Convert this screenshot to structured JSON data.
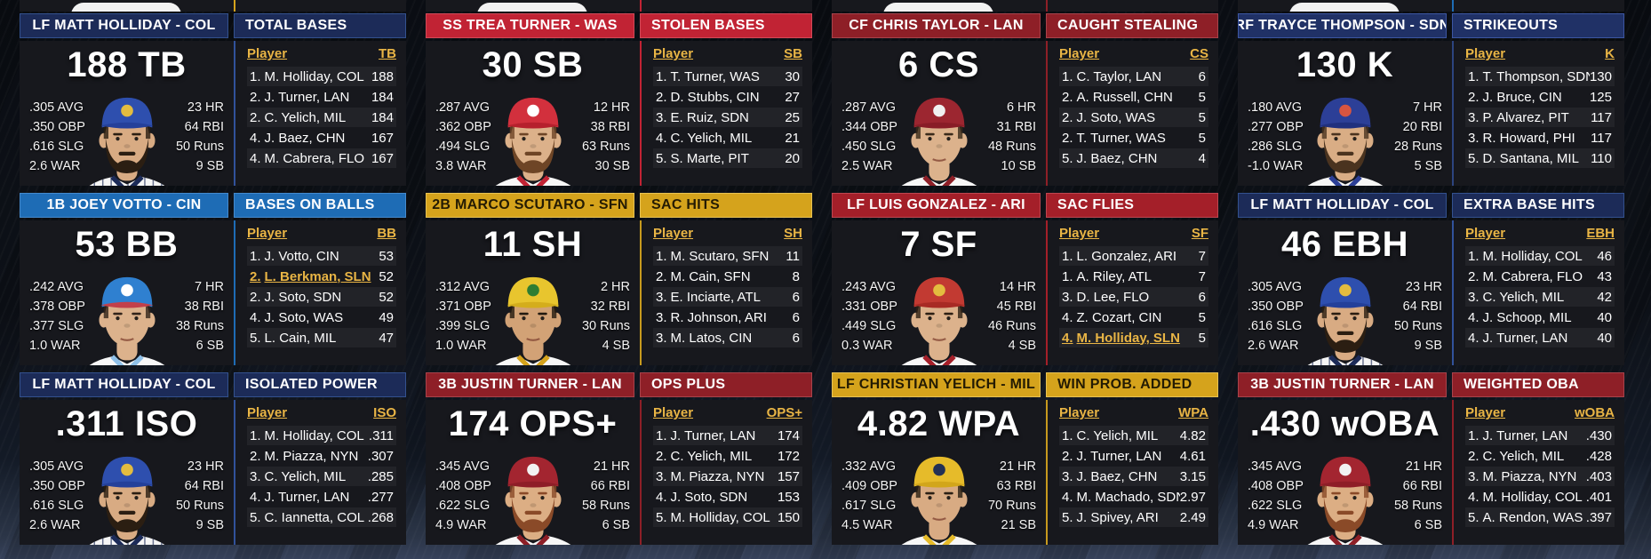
{
  "peek_row": {
    "accents": [
      "#d5a31c",
      "#c12334",
      "#8e1f27",
      "#1e6cb5"
    ]
  },
  "cards": [
    {
      "player": "LF MATT HOLLIDAY - COL",
      "category": "TOTAL BASES",
      "value": "188 TB",
      "stats_left": [
        ".305 AVG",
        ".350 OBP",
        ".616 SLG",
        "2.6 WAR"
      ],
      "stats_right": [
        "23 HR",
        "64 RBI",
        "50 Runs",
        "9 SB"
      ],
      "stat_abbr": "TB",
      "player_col_label": "Player",
      "leaders": [
        {
          "rank": "1.",
          "name": "M. Holliday, COL",
          "value": "188",
          "highlight": false
        },
        {
          "rank": "2.",
          "name": "J. Turner, LAN",
          "value": "184",
          "highlight": false
        },
        {
          "rank": "2.",
          "name": "C. Yelich, MIL",
          "value": "184",
          "highlight": false
        },
        {
          "rank": "4.",
          "name": "J. Baez, CHN",
          "value": "167",
          "highlight": false
        },
        {
          "rank": "4.",
          "name": "M. Cabrera, FLO",
          "value": "167",
          "highlight": false
        }
      ],
      "colors": {
        "header_bg": "#1c2b58",
        "header_text": "#ffffff",
        "header_border": "#33518e",
        "accent": "#31529b"
      },
      "portrait": {
        "cap": "#2e4fae",
        "bill": "#24409a",
        "logo": "#e3bc3f",
        "jersey": "#f5f5f5",
        "trim": "#1c2b58",
        "pinstripes": true,
        "beard": true,
        "skin": "#d8ab83",
        "hair": "#2b1e12"
      }
    },
    {
      "player": "SS TREA TURNER - WAS",
      "category": "STOLEN BASES",
      "value": "30 SB",
      "stats_left": [
        ".287 AVG",
        ".362 OBP",
        ".494 SLG",
        "3.8 WAR"
      ],
      "stats_right": [
        "12 HR",
        "38 RBI",
        "63 Runs",
        "30 SB"
      ],
      "stat_abbr": "SB",
      "player_col_label": "Player",
      "leaders": [
        {
          "rank": "1.",
          "name": "T. Turner, WAS",
          "value": "30",
          "highlight": false
        },
        {
          "rank": "2.",
          "name": "D. Stubbs, CIN",
          "value": "27",
          "highlight": false
        },
        {
          "rank": "3.",
          "name": "E. Ruiz, SDN",
          "value": "25",
          "highlight": false
        },
        {
          "rank": "4.",
          "name": "C. Yelich, MIL",
          "value": "21",
          "highlight": false
        },
        {
          "rank": "5.",
          "name": "S. Marte, PIT",
          "value": "20",
          "highlight": false
        }
      ],
      "colors": {
        "header_bg": "#c12334",
        "header_text": "#ffffff",
        "header_border": "#d24a58",
        "accent": "#c12334"
      },
      "portrait": {
        "cap": "#d2303d",
        "bill": "#b6202d",
        "logo": "#ffffff",
        "jersey": "#f7f7f7",
        "trim": "#c12334",
        "pinstripes": false,
        "beard": true,
        "skin": "#dcb18a",
        "hair": "#6e4526"
      }
    },
    {
      "player": "CF CHRIS TAYLOR - LAN",
      "category": "CAUGHT STEALING",
      "value": "6 CS",
      "stats_left": [
        ".287 AVG",
        ".344 OBP",
        ".450 SLG",
        "2.5 WAR"
      ],
      "stats_right": [
        "6 HR",
        "31 RBI",
        "48 Runs",
        "10 SB"
      ],
      "stat_abbr": "CS",
      "player_col_label": "Player",
      "leaders": [
        {
          "rank": "1.",
          "name": "C. Taylor, LAN",
          "value": "6",
          "highlight": false
        },
        {
          "rank": "2.",
          "name": "A. Russell, CHN",
          "value": "5",
          "highlight": false
        },
        {
          "rank": "2.",
          "name": "J. Soto, WAS",
          "value": "5",
          "highlight": false
        },
        {
          "rank": "2.",
          "name": "T. Turner, WAS",
          "value": "5",
          "highlight": false
        },
        {
          "rank": "5.",
          "name": "J. Baez, CHN",
          "value": "4",
          "highlight": false
        }
      ],
      "colors": {
        "header_bg": "#8e1f27",
        "header_text": "#ffffff",
        "header_border": "#a8434b",
        "accent": "#8e1f27"
      },
      "portrait": {
        "cap": "#9c2630",
        "bill": "#891d27",
        "logo": "#f0f0f0",
        "jersey": "#f7f7f7",
        "trim": "#8e1f27",
        "pinstripes": false,
        "beard": false,
        "skin": "#dcb28c",
        "hair": "#3a2a1a"
      }
    },
    {
      "player": "RF TRAYCE THOMPSON - SDN",
      "category": "STRIKEOUTS",
      "value": "130 K",
      "stats_left": [
        ".180 AVG",
        ".277 OBP",
        ".286 SLG",
        "-1.0 WAR"
      ],
      "stats_right": [
        "7 HR",
        "20 RBI",
        "28 Runs",
        "5 SB"
      ],
      "stat_abbr": "K",
      "player_col_label": "Player",
      "leaders": [
        {
          "rank": "1.",
          "name": "T. Thompson, SDN",
          "value": "130",
          "highlight": false
        },
        {
          "rank": "2.",
          "name": "J. Bruce, CIN",
          "value": "125",
          "highlight": false
        },
        {
          "rank": "3.",
          "name": "P. Alvarez, PIT",
          "value": "117",
          "highlight": false
        },
        {
          "rank": "3.",
          "name": "R. Howard, PHI",
          "value": "117",
          "highlight": false
        },
        {
          "rank": "5.",
          "name": "D. Santana, MIL",
          "value": "110",
          "highlight": false
        }
      ],
      "colors": {
        "header_bg": "#203166",
        "header_text": "#ffffff",
        "header_border": "#3c56a2",
        "accent": "#2c447f"
      },
      "portrait": {
        "cap": "#2c3f97",
        "bill": "#20307e",
        "logo": "#d85540",
        "jersey": "#f6f6f6",
        "trim": "#2c3f97",
        "pinstripes": false,
        "beard": true,
        "skin": "#d9ad85",
        "hair": "#4a331f"
      }
    },
    {
      "player": "1B JOEY VOTTO - CIN",
      "category": "BASES ON BALLS",
      "value": "53 BB",
      "stats_left": [
        ".242 AVG",
        ".378 OBP",
        ".377 SLG",
        "1.0 WAR"
      ],
      "stats_right": [
        "7 HR",
        "38 RBI",
        "38 Runs",
        "6 SB"
      ],
      "stat_abbr": "BB",
      "player_col_label": "Player",
      "leaders": [
        {
          "rank": "1.",
          "name": "J. Votto, CIN",
          "value": "53",
          "highlight": false
        },
        {
          "rank": "2.",
          "name": "L. Berkman, SLN",
          "value": "52",
          "highlight": true
        },
        {
          "rank": "2.",
          "name": "J. Soto, SDN",
          "value": "52",
          "highlight": false
        },
        {
          "rank": "4.",
          "name": "J. Soto, WAS",
          "value": "49",
          "highlight": false
        },
        {
          "rank": "5.",
          "name": "L. Cain, MIL",
          "value": "47",
          "highlight": false
        }
      ],
      "colors": {
        "header_bg": "#1e6cb5",
        "header_text": "#ffffff",
        "header_border": "#4489cc",
        "accent": "#1e6cb5"
      },
      "portrait": {
        "cap": "#2f80d0",
        "bill": "#c2404a",
        "logo": "#ffffff",
        "jersey": "#f7f7f7",
        "trim": "#8fc0e8",
        "pinstripes": false,
        "beard": false,
        "skin": "#dcb28c",
        "hair": "#32241a"
      }
    },
    {
      "player": "2B MARCO SCUTARO - SFN",
      "category": "SAC HITS",
      "value": "11 SH",
      "stats_left": [
        ".312 AVG",
        ".371 OBP",
        ".399 SLG",
        "1.0 WAR"
      ],
      "stats_right": [
        "2 HR",
        "32 RBI",
        "30 Runs",
        "4 SB"
      ],
      "stat_abbr": "SH",
      "player_col_label": "Player",
      "leaders": [
        {
          "rank": "1.",
          "name": "M. Scutaro, SFN",
          "value": "11",
          "highlight": false
        },
        {
          "rank": "2.",
          "name": "M. Cain, SFN",
          "value": "8",
          "highlight": false
        },
        {
          "rank": "3.",
          "name": "E. Inciarte, ATL",
          "value": "6",
          "highlight": false
        },
        {
          "rank": "3.",
          "name": "R. Johnson, ARI",
          "value": "6",
          "highlight": false
        },
        {
          "rank": "3.",
          "name": "M. Latos, CIN",
          "value": "6",
          "highlight": false
        }
      ],
      "colors": {
        "header_bg": "#d5a31c",
        "header_text": "#241b03",
        "header_border": "#e7c253",
        "accent": "#c79a1e"
      },
      "portrait": {
        "cap": "#e8c52e",
        "bill": "#d4ad1c",
        "logo": "#2e7d32",
        "jersey": "#f7f7f7",
        "trim": "#d5a31c",
        "pinstripes": false,
        "beard": false,
        "skin": "#d2a276",
        "hair": "#231a10"
      }
    },
    {
      "player": "LF LUIS GONZALEZ - ARI",
      "category": "SAC FLIES",
      "value": "7 SF",
      "stats_left": [
        ".243 AVG",
        ".331 OBP",
        ".449 SLG",
        "0.3 WAR"
      ],
      "stats_right": [
        "14 HR",
        "45 RBI",
        "46 Runs",
        "4 SB"
      ],
      "stat_abbr": "SF",
      "player_col_label": "Player",
      "leaders": [
        {
          "rank": "1.",
          "name": "L. Gonzalez, ARI",
          "value": "7",
          "highlight": false
        },
        {
          "rank": "1.",
          "name": "A. Riley, ATL",
          "value": "7",
          "highlight": false
        },
        {
          "rank": "3.",
          "name": "D. Lee, FLO",
          "value": "6",
          "highlight": false
        },
        {
          "rank": "4.",
          "name": "Z. Cozart, CIN",
          "value": "5",
          "highlight": false
        },
        {
          "rank": "4.",
          "name": "M. Holliday, SLN",
          "value": "5",
          "highlight": true
        }
      ],
      "colors": {
        "header_bg": "#a41f29",
        "header_text": "#ffffff",
        "header_border": "#bc4650",
        "accent": "#a41f29"
      },
      "portrait": {
        "cap": "#c23a32",
        "bill": "#a82a24",
        "logo": "#e3bc3f",
        "jersey": "#f7f7f7",
        "trim": "#a41f29",
        "pinstripes": false,
        "beard": false,
        "skin": "#dcb28c",
        "hair": "#2e2014"
      }
    },
    {
      "player": "LF MATT HOLLIDAY - COL",
      "category": "EXTRA BASE HITS",
      "value": "46 EBH",
      "stats_left": [
        ".305 AVG",
        ".350 OBP",
        ".616 SLG",
        "2.6 WAR"
      ],
      "stats_right": [
        "23 HR",
        "64 RBI",
        "50 Runs",
        "9 SB"
      ],
      "stat_abbr": "EBH",
      "player_col_label": "Player",
      "leaders": [
        {
          "rank": "1.",
          "name": "M. Holliday, COL",
          "value": "46",
          "highlight": false
        },
        {
          "rank": "2.",
          "name": "M. Cabrera, FLO",
          "value": "43",
          "highlight": false
        },
        {
          "rank": "3.",
          "name": "C. Yelich, MIL",
          "value": "42",
          "highlight": false
        },
        {
          "rank": "4.",
          "name": "J. Schoop, MIL",
          "value": "40",
          "highlight": false
        },
        {
          "rank": "4.",
          "name": "J. Turner, LAN",
          "value": "40",
          "highlight": false
        }
      ],
      "colors": {
        "header_bg": "#1c2b58",
        "header_text": "#ffffff",
        "header_border": "#33518e",
        "accent": "#31529b"
      },
      "portrait": {
        "cap": "#2e4fae",
        "bill": "#24409a",
        "logo": "#e3bc3f",
        "jersey": "#f5f5f5",
        "trim": "#1c2b58",
        "pinstripes": true,
        "beard": true,
        "skin": "#d8ab83",
        "hair": "#2b1e12"
      }
    },
    {
      "player": "LF MATT HOLLIDAY - COL",
      "category": "ISOLATED POWER",
      "value": ".311 ISO",
      "stats_left": [
        ".305 AVG",
        ".350 OBP",
        ".616 SLG",
        "2.6 WAR"
      ],
      "stats_right": [
        "23 HR",
        "64 RBI",
        "50 Runs",
        "9 SB"
      ],
      "stat_abbr": "ISO",
      "player_col_label": "Player",
      "leaders": [
        {
          "rank": "1.",
          "name": "M. Holliday, COL",
          "value": ".311",
          "highlight": false
        },
        {
          "rank": "2.",
          "name": "M. Piazza, NYN",
          "value": ".307",
          "highlight": false
        },
        {
          "rank": "3.",
          "name": "C. Yelich, MIL",
          "value": ".285",
          "highlight": false
        },
        {
          "rank": "4.",
          "name": "J. Turner, LAN",
          "value": ".277",
          "highlight": false
        },
        {
          "rank": "5.",
          "name": "C. Iannetta, COL",
          "value": ".268",
          "highlight": false
        }
      ],
      "colors": {
        "header_bg": "#1c2b58",
        "header_text": "#ffffff",
        "header_border": "#33518e",
        "accent": "#31529b"
      },
      "portrait": {
        "cap": "#2e4fae",
        "bill": "#24409a",
        "logo": "#e3bc3f",
        "jersey": "#f5f5f5",
        "trim": "#1c2b58",
        "pinstripes": true,
        "beard": true,
        "skin": "#d8ab83",
        "hair": "#2b1e12"
      }
    },
    {
      "player": "3B JUSTIN TURNER - LAN",
      "category": "OPS PLUS",
      "value": "174 OPS+",
      "stats_left": [
        ".345 AVG",
        ".408 OBP",
        ".622 SLG",
        "4.9 WAR"
      ],
      "stats_right": [
        "21 HR",
        "66 RBI",
        "58 Runs",
        "6 SB"
      ],
      "stat_abbr": "OPS+",
      "player_col_label": "Player",
      "leaders": [
        {
          "rank": "1.",
          "name": "J. Turner, LAN",
          "value": "174",
          "highlight": false
        },
        {
          "rank": "2.",
          "name": "C. Yelich, MIL",
          "value": "172",
          "highlight": false
        },
        {
          "rank": "3.",
          "name": "M. Piazza, NYN",
          "value": "157",
          "highlight": false
        },
        {
          "rank": "4.",
          "name": "J. Soto, SDN",
          "value": "153",
          "highlight": false
        },
        {
          "rank": "5.",
          "name": "M. Holliday, COL",
          "value": "150",
          "highlight": false
        }
      ],
      "colors": {
        "header_bg": "#8e1f27",
        "header_text": "#ffffff",
        "header_border": "#a8434b",
        "accent": "#8e1f27"
      },
      "portrait": {
        "cap": "#a32530",
        "bill": "#8e1d27",
        "logo": "#f2f2f2",
        "jersey": "#f7f7f7",
        "trim": "#8e1f27",
        "pinstripes": false,
        "beard": true,
        "skin": "#dcae84",
        "hair": "#8a4a28"
      }
    },
    {
      "player": "LF CHRISTIAN YELICH - MIL",
      "category": "WIN PROB. ADDED",
      "value": "4.82 WPA",
      "stats_left": [
        ".332 AVG",
        ".409 OBP",
        ".617 SLG",
        "4.5 WAR"
      ],
      "stats_right": [
        "21 HR",
        "63 RBI",
        "70 Runs",
        "21 SB"
      ],
      "stat_abbr": "WPA",
      "player_col_label": "Player",
      "leaders": [
        {
          "rank": "1.",
          "name": "C. Yelich, MIL",
          "value": "4.82",
          "highlight": false
        },
        {
          "rank": "2.",
          "name": "J. Turner, LAN",
          "value": "4.61",
          "highlight": false
        },
        {
          "rank": "3.",
          "name": "J. Baez, CHN",
          "value": "3.15",
          "highlight": false
        },
        {
          "rank": "4.",
          "name": "M. Machado, SDN",
          "value": "2.97",
          "highlight": false
        },
        {
          "rank": "5.",
          "name": "J. Spivey, ARI",
          "value": "2.49",
          "highlight": false
        }
      ],
      "colors": {
        "header_bg": "#d5a31c",
        "header_text": "#241b03",
        "header_border": "#e7c253",
        "accent": "#c79a1e"
      },
      "portrait": {
        "cap": "#e6bb2a",
        "bill": "#d2a61b",
        "logo": "#233055",
        "jersey": "#f7f7f7",
        "trim": "#e6bb2a",
        "pinstripes": false,
        "beard": false,
        "skin": "#d8ab83",
        "hair": "#2b2014"
      }
    },
    {
      "player": "3B JUSTIN TURNER - LAN",
      "category": "WEIGHTED OBA",
      "value": ".430 wOBA",
      "stats_left": [
        ".345 AVG",
        ".408 OBP",
        ".622 SLG",
        "4.9 WAR"
      ],
      "stats_right": [
        "21 HR",
        "66 RBI",
        "58 Runs",
        "6 SB"
      ],
      "stat_abbr": "wOBA",
      "player_col_label": "Player",
      "leaders": [
        {
          "rank": "1.",
          "name": "J. Turner, LAN",
          "value": ".430",
          "highlight": false
        },
        {
          "rank": "2.",
          "name": "C. Yelich, MIL",
          "value": ".428",
          "highlight": false
        },
        {
          "rank": "3.",
          "name": "M. Piazza, NYN",
          "value": ".403",
          "highlight": false
        },
        {
          "rank": "4.",
          "name": "M. Holliday, COL",
          "value": ".401",
          "highlight": false
        },
        {
          "rank": "5.",
          "name": "A. Rendon, WAS",
          "value": ".397",
          "highlight": false
        }
      ],
      "colors": {
        "header_bg": "#8e1f27",
        "header_text": "#ffffff",
        "header_border": "#a8434b",
        "accent": "#8e1f27"
      },
      "portrait": {
        "cap": "#a32530",
        "bill": "#8e1d27",
        "logo": "#f2f2f2",
        "jersey": "#f7f7f7",
        "trim": "#8e1f27",
        "pinstripes": false,
        "beard": true,
        "skin": "#dcae84",
        "hair": "#8a4a28"
      }
    }
  ]
}
